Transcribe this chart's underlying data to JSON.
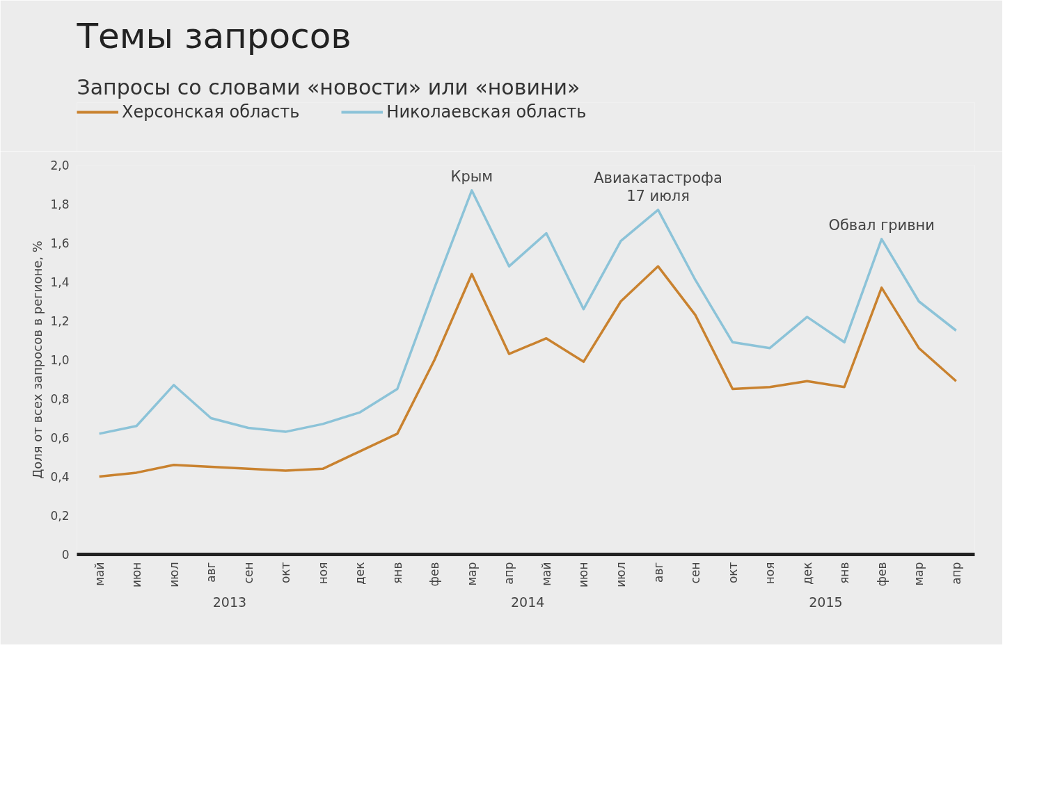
{
  "chart_data": {
    "type": "line",
    "title": "Темы запросов",
    "subtitle": "Запросы со словами «новости» или «новини»",
    "ylabel": "Доля от всех запросов в регионе, %",
    "categories": [
      "май",
      "июн",
      "июл",
      "авг",
      "сен",
      "окт",
      "ноя",
      "дек",
      "янв",
      "фев",
      "мар",
      "апр",
      "май",
      "июн",
      "июл",
      "авг",
      "сен",
      "окт",
      "ноя",
      "дек",
      "янв",
      "фев",
      "мар",
      "апр"
    ],
    "ylim": [
      0,
      2.0
    ],
    "yticks": [
      0,
      {
        "value": 0.2,
        "label": "0,2"
      },
      {
        "value": 0.4,
        "label": "0,4"
      },
      {
        "value": 0.6,
        "label": "0,6"
      },
      {
        "value": 0.8,
        "label": "0,8"
      },
      {
        "value": 1.0,
        "label": "1,0"
      },
      {
        "value": 1.2,
        "label": "1,2"
      },
      {
        "value": 1.4,
        "label": "1,4"
      },
      {
        "value": 1.6,
        "label": "1,6"
      },
      {
        "value": 1.8,
        "label": "1,8"
      },
      {
        "value": 2.0,
        "label": "2,0"
      }
    ],
    "series": [
      {
        "name": "Херсонская область",
        "color": "#c9822f",
        "values": [
          0.4,
          0.42,
          0.46,
          0.45,
          0.44,
          0.43,
          0.44,
          0.53,
          0.62,
          1.0,
          1.44,
          1.03,
          1.11,
          0.99,
          1.3,
          1.48,
          1.23,
          0.85,
          0.86,
          0.89,
          0.86,
          1.37,
          1.06,
          0.89
        ]
      },
      {
        "name": "Николаевская область",
        "color": "#8cc3d8",
        "values": [
          0.62,
          0.66,
          0.87,
          0.7,
          0.65,
          0.63,
          0.67,
          0.73,
          0.85,
          1.37,
          1.87,
          1.48,
          1.65,
          1.26,
          1.61,
          1.77,
          1.41,
          1.09,
          1.06,
          1.22,
          1.09,
          1.62,
          1.3,
          1.15
        ]
      }
    ],
    "annotations": [
      "Крым",
      "Авиакатастрофа\n17 июля",
      "Обвал гривни",
      "2013",
      "2014",
      "2015"
    ],
    "grid": false,
    "legend": "top left",
    "marker": "none",
    "line_style": "solid"
  }
}
